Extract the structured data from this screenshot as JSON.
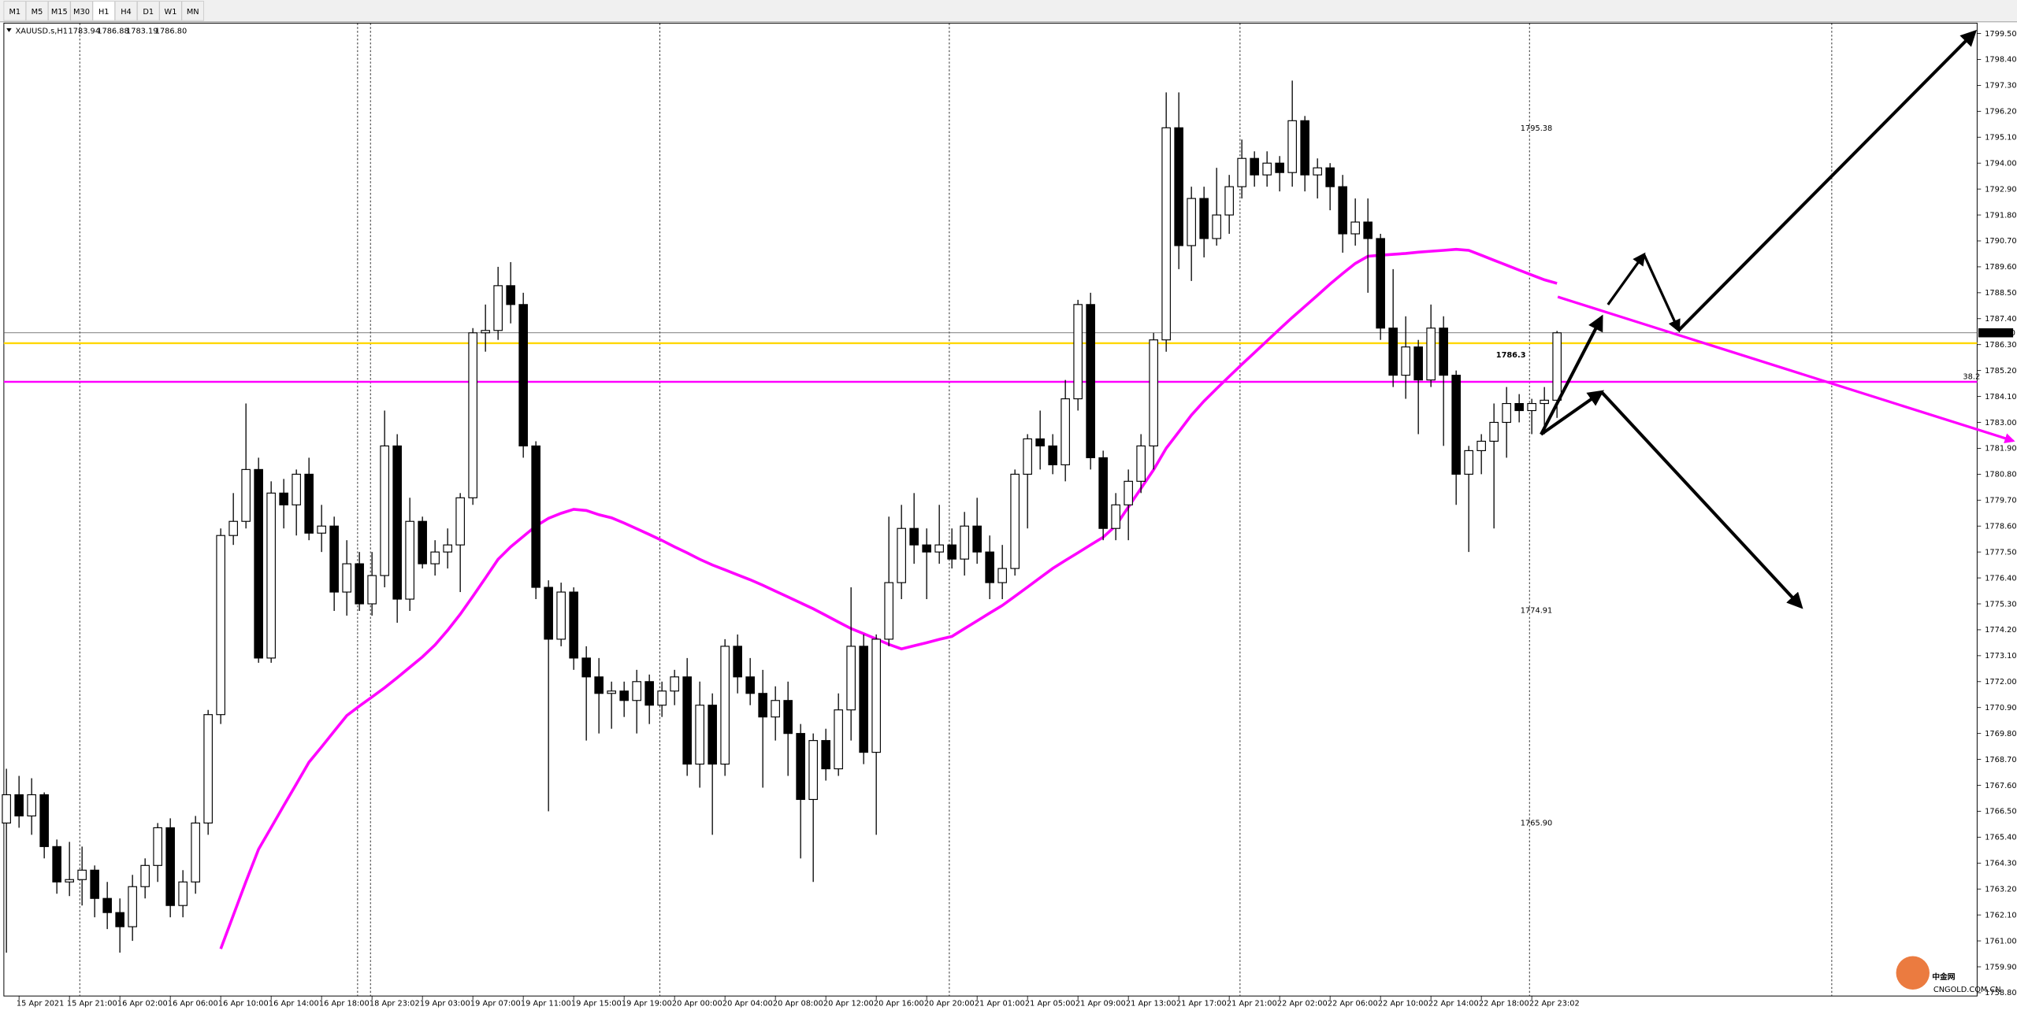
{
  "toolbar": {
    "timeframes": [
      "M1",
      "M5",
      "M15",
      "M30",
      "H1",
      "H4",
      "D1",
      "W1",
      "MN"
    ]
  },
  "quote": {
    "symbol": "XAUUSD.s,H1",
    "values": [
      "1783.94",
      "1786.88",
      "1783.19",
      "1786.80"
    ]
  },
  "chart_data": {
    "type": "candlestick",
    "categories": [
      null,
      "15 Apr 2021",
      null,
      null,
      null,
      "15 Apr 21:00",
      null,
      null,
      null,
      "16 Apr 02:00",
      null,
      null,
      null,
      "16 Apr 06:00",
      null,
      null,
      null,
      "16 Apr 10:00",
      null,
      null,
      null,
      "16 Apr 14:00",
      null,
      null,
      null,
      "16 Apr 18:00",
      null,
      null,
      null,
      "18 Apr 23:02",
      null,
      null,
      null,
      "19 Apr 03:00",
      null,
      null,
      null,
      "19 Apr 07:00",
      null,
      null,
      null,
      "19 Apr 11:00",
      null,
      null,
      null,
      "19 Apr 15:00",
      null,
      null,
      null,
      "19 Apr 19:00",
      null,
      null,
      null,
      "20 Apr 00:00",
      null,
      null,
      null,
      "20 Apr 04:00",
      null,
      null,
      null,
      "20 Apr 08:00",
      null,
      null,
      null,
      "20 Apr 12:00",
      null,
      null,
      null,
      "20 Apr 16:00",
      null,
      null,
      null,
      "20 Apr 20:00",
      null,
      null,
      null,
      "21 Apr 01:00",
      null,
      null,
      null,
      "21 Apr 05:00",
      null,
      null,
      null,
      "21 Apr 09:00",
      null,
      null,
      null,
      "21 Apr 13:00",
      null,
      null,
      null,
      "21 Apr 17:00",
      null,
      null,
      null,
      "21 Apr 21:00",
      null,
      null,
      null,
      "22 Apr 02:00",
      null,
      null,
      null,
      "22 Apr 06:00",
      null,
      null,
      null,
      "22 Apr 10:00",
      null,
      null,
      null,
      "22 Apr 14:00",
      null,
      null,
      null,
      "22 Apr 18:00",
      null,
      null,
      null,
      "22 Apr 23:02",
      null,
      null
    ],
    "open": [
      1766.0,
      1767.2,
      1766.3,
      1767.2,
      1765.0,
      1763.5,
      1763.6,
      1764.0,
      1762.8,
      1762.2,
      1761.6,
      1763.3,
      1764.2,
      1765.8,
      1762.5,
      1763.5,
      1766.0,
      1770.6,
      1778.2,
      1778.8,
      1781.0,
      1773.0,
      1780.0,
      1779.5,
      1780.8,
      1778.3,
      1778.6,
      1775.8,
      1777.0,
      1775.3,
      1776.5,
      1782.0,
      1775.5,
      1778.8,
      1777.0,
      1777.5,
      1777.8,
      1779.8,
      1786.8,
      1786.9,
      1788.8,
      1788.0,
      1782.0,
      1776.0,
      1773.8,
      1775.8,
      1773.0,
      1772.2,
      1771.5,
      1771.6,
      1771.2,
      1772.0,
      1771.0,
      1771.6,
      1772.2,
      1768.5,
      1771.0,
      1768.5,
      1773.5,
      1772.2,
      1771.5,
      1770.5,
      1771.2,
      1769.8,
      1767.0,
      1769.5,
      1768.3,
      1770.8,
      1773.5,
      1769.0,
      1773.8,
      1776.2,
      1778.5,
      1777.8,
      1777.5,
      1777.8,
      1777.2,
      1778.6,
      1777.5,
      1776.2,
      1776.8,
      1780.8,
      1782.3,
      1782.0,
      1781.2,
      1784.0,
      1788.0,
      1781.5,
      1778.5,
      1779.5,
      1780.5,
      1782.0,
      1786.5,
      1795.5,
      1790.5,
      1792.5,
      1790.8,
      1791.8,
      1793.0,
      1794.2,
      1793.5,
      1794.0,
      1793.6,
      1795.8,
      1793.5,
      1793.8,
      1793.0,
      1791.0,
      1791.5,
      1790.8,
      1787.0,
      1785.0,
      1786.2,
      1784.8,
      1787.0,
      1785.0,
      1780.8,
      1781.8,
      1782.2,
      1783.0,
      1783.8,
      1783.5,
      1783.8,
      1783.94
    ],
    "high": [
      1768.3,
      1768.0,
      1767.9,
      1767.3,
      1765.3,
      1765.2,
      1765.0,
      1764.2,
      1763.5,
      1762.8,
      1763.8,
      1764.5,
      1766.0,
      1766.2,
      1764.0,
      1766.3,
      1770.8,
      1778.5,
      1780.0,
      1783.8,
      1781.5,
      1780.5,
      1780.6,
      1781.0,
      1781.5,
      1779.5,
      1779.0,
      1778.0,
      1777.5,
      1777.5,
      1783.5,
      1782.5,
      1779.8,
      1779.0,
      1778.0,
      1778.5,
      1780.0,
      1787.0,
      1788.0,
      1789.6,
      1789.8,
      1788.5,
      1782.2,
      1776.3,
      1776.2,
      1776.0,
      1773.5,
      1773.0,
      1772.0,
      1772.0,
      1772.5,
      1772.3,
      1772.0,
      1772.5,
      1773.0,
      1772.0,
      1771.5,
      1773.8,
      1774.0,
      1773.0,
      1772.5,
      1771.8,
      1772.0,
      1770.2,
      1769.8,
      1770.0,
      1771.5,
      1776.0,
      1774.0,
      1774.0,
      1779.0,
      1779.5,
      1780.0,
      1778.5,
      1779.5,
      1778.5,
      1779.2,
      1779.8,
      1778.2,
      1777.8,
      1781.0,
      1782.5,
      1783.5,
      1782.5,
      1784.8,
      1788.2,
      1788.5,
      1781.8,
      1780.0,
      1781.0,
      1782.5,
      1786.8,
      1797.0,
      1797.0,
      1793.0,
      1793.0,
      1793.8,
      1793.5,
      1795.0,
      1794.5,
      1794.5,
      1794.3,
      1797.5,
      1796.0,
      1794.2,
      1794.0,
      1793.5,
      1792.5,
      1792.5,
      1791.0,
      1789.5,
      1787.5,
      1786.5,
      1788.0,
      1787.5,
      1785.2,
      1782.0,
      1782.5,
      1783.8,
      1784.5,
      1784.2,
      1784.0,
      1784.5,
      1786.88
    ],
    "low": [
      1760.5,
      1765.8,
      1765.5,
      1764.5,
      1763.0,
      1762.9,
      1762.5,
      1762.0,
      1761.5,
      1760.5,
      1761.0,
      1762.8,
      1763.5,
      1762.0,
      1762.0,
      1763.0,
      1765.5,
      1770.2,
      1777.8,
      1778.5,
      1772.8,
      1772.8,
      1778.5,
      1778.2,
      1778.0,
      1777.5,
      1775.0,
      1774.8,
      1775.0,
      1774.8,
      1776.0,
      1774.5,
      1775.0,
      1776.8,
      1776.5,
      1776.8,
      1775.8,
      1779.5,
      1786.0,
      1786.5,
      1787.2,
      1781.5,
      1775.5,
      1766.5,
      1773.5,
      1772.5,
      1769.5,
      1769.8,
      1770.0,
      1770.5,
      1769.8,
      1770.2,
      1770.5,
      1771.0,
      1768.0,
      1767.5,
      1765.5,
      1768.0,
      1771.5,
      1771.0,
      1767.5,
      1769.5,
      1768.0,
      1764.5,
      1763.5,
      1767.8,
      1768.0,
      1769.5,
      1768.5,
      1765.5,
      1773.5,
      1775.5,
      1777.0,
      1775.5,
      1777.0,
      1776.8,
      1776.5,
      1777.0,
      1775.5,
      1775.5,
      1776.5,
      1778.5,
      1781.0,
      1780.8,
      1780.5,
      1783.5,
      1781.0,
      1778.0,
      1778.0,
      1778.0,
      1780.0,
      1781.0,
      1786.0,
      1789.5,
      1789.0,
      1790.0,
      1790.5,
      1791.0,
      1792.5,
      1793.0,
      1793.0,
      1792.8,
      1793.0,
      1792.8,
      1792.5,
      1792.0,
      1790.2,
      1790.5,
      1788.5,
      1786.5,
      1784.5,
      1784.0,
      1782.5,
      1784.5,
      1782.0,
      1779.5,
      1777.5,
      1780.8,
      1778.5,
      1781.5,
      1783.0,
      1782.5,
      1782.5,
      1783.19
    ],
    "close": [
      1767.2,
      1766.3,
      1767.2,
      1765.0,
      1763.5,
      1763.6,
      1764.0,
      1762.8,
      1762.2,
      1761.6,
      1763.3,
      1764.2,
      1765.8,
      1762.5,
      1763.5,
      1766.0,
      1770.6,
      1778.2,
      1778.8,
      1781.0,
      1773.0,
      1780.0,
      1779.5,
      1780.8,
      1778.3,
      1778.6,
      1775.8,
      1777.0,
      1775.3,
      1776.5,
      1782.0,
      1775.5,
      1778.8,
      1777.0,
      1777.5,
      1777.8,
      1779.8,
      1786.8,
      1786.9,
      1788.8,
      1788.0,
      1782.0,
      1776.0,
      1773.8,
      1775.8,
      1773.0,
      1772.2,
      1771.5,
      1771.6,
      1771.2,
      1772.0,
      1771.0,
      1771.6,
      1772.2,
      1768.5,
      1771.0,
      1768.5,
      1773.5,
      1772.2,
      1771.5,
      1770.5,
      1771.2,
      1769.8,
      1767.0,
      1769.5,
      1768.3,
      1770.8,
      1773.5,
      1769.0,
      1773.8,
      1776.2,
      1778.5,
      1777.8,
      1777.5,
      1777.8,
      1777.2,
      1778.6,
      1777.5,
      1776.2,
      1776.8,
      1780.8,
      1782.3,
      1782.0,
      1781.2,
      1784.0,
      1788.0,
      1781.5,
      1778.5,
      1779.5,
      1780.5,
      1782.0,
      1786.5,
      1795.5,
      1790.5,
      1792.5,
      1790.8,
      1791.8,
      1793.0,
      1794.2,
      1793.5,
      1794.0,
      1793.6,
      1795.8,
      1793.5,
      1793.8,
      1793.0,
      1791.0,
      1791.5,
      1790.8,
      1787.0,
      1785.0,
      1786.2,
      1784.8,
      1787.0,
      1785.0,
      1780.8,
      1781.8,
      1782.2,
      1783.0,
      1783.8,
      1783.5,
      1783.8,
      1783.94,
      1786.8
    ],
    "series": [
      {
        "color": "#ff00ff",
        "values": [
          null,
          null,
          null,
          null,
          null,
          null,
          null,
          null,
          null,
          null,
          null,
          null,
          null,
          null,
          null,
          null,
          null,
          1760.66,
          1762.09,
          1763.52,
          1764.89,
          1765.81,
          1766.74,
          1767.66,
          1768.58,
          1769.23,
          1769.9,
          1770.56,
          1770.96,
          1771.35,
          1771.74,
          1772.17,
          1772.61,
          1773.05,
          1773.56,
          1774.18,
          1774.86,
          1775.62,
          1776.4,
          1777.19,
          1777.72,
          1778.16,
          1778.6,
          1778.93,
          1779.14,
          1779.31,
          1779.26,
          1779.08,
          1778.95,
          1778.73,
          1778.49,
          1778.24,
          1777.99,
          1777.72,
          1777.46,
          1777.19,
          1776.95,
          1776.74,
          1776.53,
          1776.32,
          1776.09,
          1775.84,
          1775.59,
          1775.34,
          1775.09,
          1774.81,
          1774.53,
          1774.25,
          1774.03,
          1773.81,
          1773.58,
          1773.39,
          1773.52,
          1773.65,
          1773.79,
          1773.92,
          1774.25,
          1774.58,
          1774.91,
          1775.23,
          1775.62,
          1776.01,
          1776.41,
          1776.8,
          1777.14,
          1777.47,
          1777.8,
          1778.13,
          1778.62,
          1779.41,
          1780.2,
          1780.99,
          1781.9,
          1782.6,
          1783.31,
          1783.9,
          1784.43,
          1784.95,
          1785.46,
          1785.96,
          1786.46,
          1786.96,
          1787.45,
          1787.92,
          1788.39,
          1788.87,
          1789.32,
          1789.74,
          1790.05,
          1790.09,
          1790.13,
          1790.17,
          1790.22,
          1790.26,
          1790.3,
          1790.34,
          1790.3,
          1790.09,
          1789.88,
          1789.67,
          1789.46,
          1789.25,
          1789.05,
          1788.9
        ]
      }
    ],
    "hlines": [
      {
        "value": 1786.36,
        "color": "#ffd700"
      },
      {
        "value": 1784.72,
        "color": "#ff00ff",
        "label": "38.2"
      }
    ],
    "levels": [
      1795.38,
      1774.91,
      {
        "value": 1765.9,
        "label": "1765.90"
      }
    ],
    "note": "1786.3",
    "ylim": [
      1758.66,
      1799.94
    ],
    "yticks": [
      {
        "value": 1799.5,
        "label": "1799.50"
      },
      {
        "value": 1798.4,
        "label": "1798.40"
      },
      {
        "value": 1797.3,
        "label": "1797.30"
      },
      {
        "value": 1796.2,
        "label": "1796.20"
      },
      {
        "value": 1795.1,
        "label": "1795.10"
      },
      {
        "value": 1794.0,
        "label": "1794.00"
      },
      {
        "value": 1792.9,
        "label": "1792.90"
      },
      {
        "value": 1791.8,
        "label": "1791.80"
      },
      {
        "value": 1790.7,
        "label": "1790.70"
      },
      {
        "value": 1789.6,
        "label": "1789.60"
      },
      {
        "value": 1788.5,
        "label": "1788.50"
      },
      {
        "value": 1787.4,
        "label": "1787.40"
      },
      {
        "value": 1786.3,
        "label": "1786.30"
      },
      {
        "value": 1785.2,
        "label": "1785.20"
      },
      {
        "value": 1784.1,
        "label": "1784.10"
      },
      {
        "value": 1783.0,
        "label": "1783.00"
      },
      {
        "value": 1781.9,
        "label": "1781.90"
      },
      {
        "value": 1780.8,
        "label": "1780.80"
      },
      {
        "value": 1779.7,
        "label": "1779.70"
      },
      {
        "value": 1778.6,
        "label": "1778.60"
      },
      {
        "value": 1777.5,
        "label": "1777.50"
      },
      {
        "value": 1776.4,
        "label": "1776.40"
      },
      {
        "value": 1775.3,
        "label": "1775.30"
      },
      {
        "value": 1774.2,
        "label": "1774.20"
      },
      {
        "value": 1773.1,
        "label": "1773.10"
      },
      {
        "value": 1772.0,
        "label": "1772.00"
      },
      {
        "value": 1770.9,
        "label": "1770.90"
      },
      {
        "value": 1769.8,
        "label": "1769.80"
      },
      {
        "value": 1768.7,
        "label": "1768.70"
      },
      {
        "value": 1767.6,
        "label": "1767.60"
      },
      {
        "value": 1766.5,
        "label": "1766.50"
      },
      {
        "value": 1765.4,
        "label": "1765.40"
      },
      {
        "value": 1764.3,
        "label": "1764.30"
      },
      {
        "value": 1763.2,
        "label": "1763.20"
      },
      {
        "value": 1762.1,
        "label": "1762.10"
      },
      {
        "value": 1761.0,
        "label": "1761.00"
      },
      {
        "value": 1759.9,
        "label": "1759.90"
      },
      {
        "value": 1758.8,
        "label": "1758.80"
      }
    ],
    "grid": false
  },
  "watermark": {
    "brand": "中金网",
    "site": "CNGOLD.COM.CN"
  }
}
